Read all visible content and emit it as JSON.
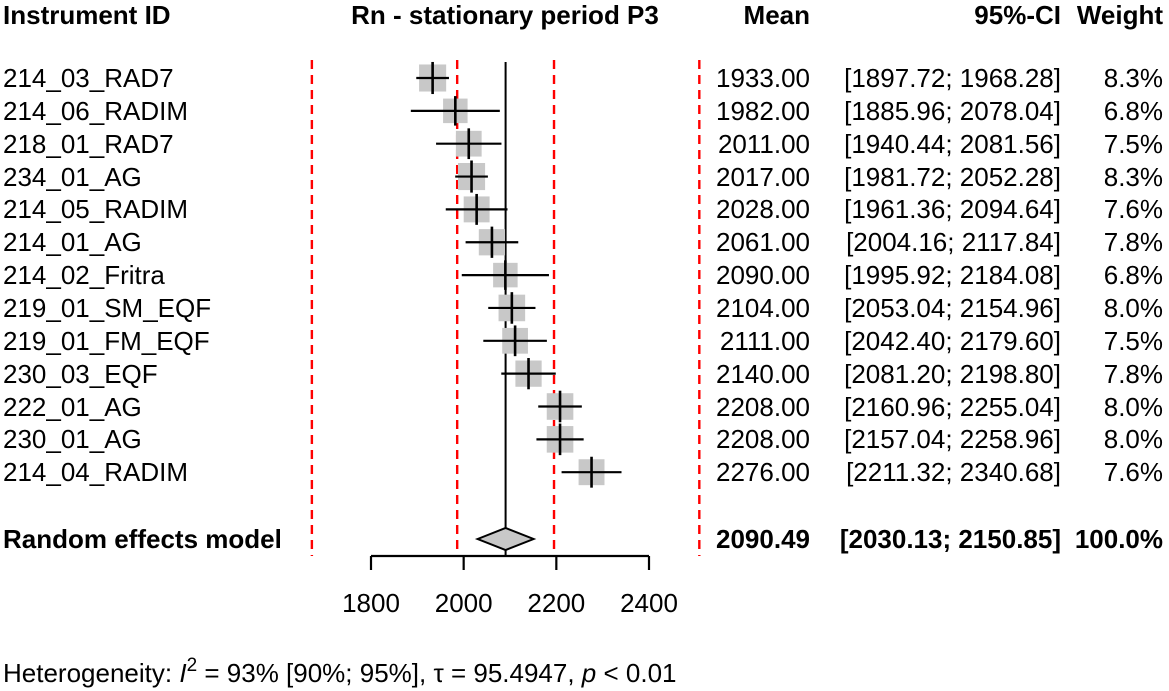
{
  "headers": {
    "instrument": "Instrument ID",
    "title": "Rn - stationary period P3",
    "mean": "Mean",
    "ci": "95%-CI",
    "weight": "Weight"
  },
  "chart_data": {
    "type": "forest",
    "title": "Rn - stationary period P3",
    "x_axis": {
      "ticks": [
        1800,
        2000,
        2200,
        2400
      ],
      "tick_labels": [
        "1800",
        "2000",
        "2200",
        "2400"
      ],
      "xlim": [
        1650,
        2530
      ]
    },
    "pooled_mean_line": 2090.49,
    "reference_lines_dashed": [
      1672.4,
      1986.0,
      2195.0,
      2508.6
    ],
    "colors": {
      "square": "#c8c8c8",
      "diamond": "#c8c8c8",
      "reference": "#ff0000",
      "line": "#000000"
    },
    "legend_position": "none",
    "grid": false,
    "studies": [
      {
        "id": "214_03_RAD7",
        "mean": 1933.0,
        "ci_low": 1897.72,
        "ci_high": 1968.28,
        "weight": 8.3,
        "mean_label": "1933.00",
        "ci_label": "[1897.72; 1968.28]",
        "weight_label": "8.3%"
      },
      {
        "id": "214_06_RADIM",
        "mean": 1982.0,
        "ci_low": 1885.96,
        "ci_high": 2078.04,
        "weight": 6.8,
        "mean_label": "1982.00",
        "ci_label": "[1885.96; 2078.04]",
        "weight_label": "6.8%"
      },
      {
        "id": "218_01_RAD7",
        "mean": 2011.0,
        "ci_low": 1940.44,
        "ci_high": 2081.56,
        "weight": 7.5,
        "mean_label": "2011.00",
        "ci_label": "[1940.44; 2081.56]",
        "weight_label": "7.5%"
      },
      {
        "id": "234_01_AG",
        "mean": 2017.0,
        "ci_low": 1981.72,
        "ci_high": 2052.28,
        "weight": 8.3,
        "mean_label": "2017.00",
        "ci_label": "[1981.72; 2052.28]",
        "weight_label": "8.3%"
      },
      {
        "id": "214_05_RADIM",
        "mean": 2028.0,
        "ci_low": 1961.36,
        "ci_high": 2094.64,
        "weight": 7.6,
        "mean_label": "2028.00",
        "ci_label": "[1961.36; 2094.64]",
        "weight_label": "7.6%"
      },
      {
        "id": "214_01_AG",
        "mean": 2061.0,
        "ci_low": 2004.16,
        "ci_high": 2117.84,
        "weight": 7.8,
        "mean_label": "2061.00",
        "ci_label": "[2004.16; 2117.84]",
        "weight_label": "7.8%"
      },
      {
        "id": "214_02_Fritra",
        "mean": 2090.0,
        "ci_low": 1995.92,
        "ci_high": 2184.08,
        "weight": 6.8,
        "mean_label": "2090.00",
        "ci_label": "[1995.92; 2184.08]",
        "weight_label": "6.8%"
      },
      {
        "id": "219_01_SM_EQF",
        "mean": 2104.0,
        "ci_low": 2053.04,
        "ci_high": 2154.96,
        "weight": 8.0,
        "mean_label": "2104.00",
        "ci_label": "[2053.04; 2154.96]",
        "weight_label": "8.0%"
      },
      {
        "id": "219_01_FM_EQF",
        "mean": 2111.0,
        "ci_low": 2042.4,
        "ci_high": 2179.6,
        "weight": 7.5,
        "mean_label": "2111.00",
        "ci_label": "[2042.40; 2179.60]",
        "weight_label": "7.5%"
      },
      {
        "id": "230_03_EQF",
        "mean": 2140.0,
        "ci_low": 2081.2,
        "ci_high": 2198.8,
        "weight": 7.8,
        "mean_label": "2140.00",
        "ci_label": "[2081.20; 2198.80]",
        "weight_label": "7.8%"
      },
      {
        "id": "222_01_AG",
        "mean": 2208.0,
        "ci_low": 2160.96,
        "ci_high": 2255.04,
        "weight": 8.0,
        "mean_label": "2208.00",
        "ci_label": "[2160.96; 2255.04]",
        "weight_label": "8.0%"
      },
      {
        "id": "230_01_AG",
        "mean": 2208.0,
        "ci_low": 2157.04,
        "ci_high": 2258.96,
        "weight": 8.0,
        "mean_label": "2208.00",
        "ci_label": "[2157.04; 2258.96]",
        "weight_label": "8.0%"
      },
      {
        "id": "214_04_RADIM",
        "mean": 2276.0,
        "ci_low": 2211.32,
        "ci_high": 2340.68,
        "weight": 7.6,
        "mean_label": "2276.00",
        "ci_label": "[2211.32; 2340.68]",
        "weight_label": "7.6%"
      }
    ],
    "summary": {
      "id": "Random effects model",
      "mean": 2090.49,
      "ci_low": 2030.13,
      "ci_high": 2150.85,
      "mean_label": "2090.49",
      "ci_label": "[2030.13; 2150.85]",
      "weight_label": "100.0%"
    }
  },
  "footer": {
    "prefix": "Heterogeneity: ",
    "i_symbol": "I",
    "i_sup": "2",
    "seg_a": " = 93% [90%; 95%], ",
    "tau_seg": "τ = 95.4947, ",
    "p_symbol": "p",
    "seg_b": " < 0.01"
  }
}
